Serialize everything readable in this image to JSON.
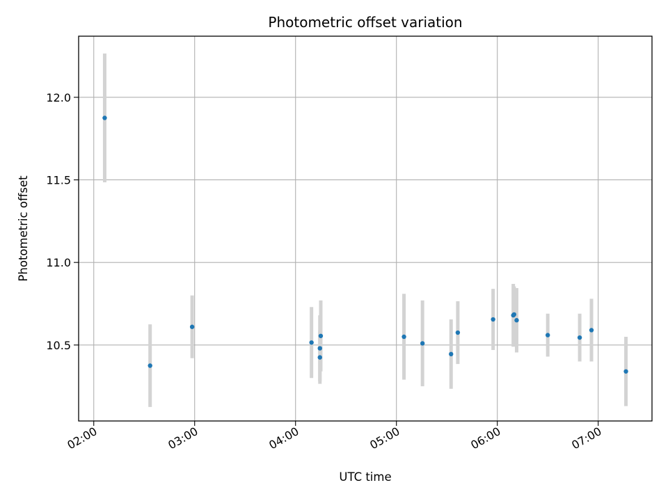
{
  "chart_data": {
    "type": "scatter",
    "title": "Photometric offset variation",
    "xlabel": "UTC time",
    "ylabel": "Photometric offset",
    "xlim": [
      "01:51",
      "07:32"
    ],
    "ylim": [
      10.04,
      12.37
    ],
    "xticks": [
      "02:00",
      "03:00",
      "04:00",
      "05:00",
      "06:00",
      "07:00"
    ],
    "yticks": [
      10.5,
      11.0,
      11.5,
      12.0
    ],
    "ytick_labels": [
      "10.5",
      "11.0",
      "11.5",
      "12.0"
    ],
    "grid": true,
    "colors": {
      "point": "#1f77b4",
      "errorbar": "#d3d3d3",
      "grid": "#b0b0b0"
    },
    "points": [
      {
        "x": "02:06.5",
        "y": 11.875,
        "err": 0.39
      },
      {
        "x": "02:33.5",
        "y": 10.375,
        "err": 0.25
      },
      {
        "x": "02:58.5",
        "y": 10.61,
        "err": 0.19
      },
      {
        "x": "04:09.5",
        "y": 10.515,
        "err": 0.215
      },
      {
        "x": "04:14.5",
        "y": 10.425,
        "err": 0.16
      },
      {
        "x": "04:14.5",
        "y": 10.48,
        "err": 0.2
      },
      {
        "x": "04:15.0",
        "y": 10.555,
        "err": 0.215
      },
      {
        "x": "05:04.5",
        "y": 10.55,
        "err": 0.26
      },
      {
        "x": "05:15.5",
        "y": 10.51,
        "err": 0.26
      },
      {
        "x": "05:32.5",
        "y": 10.445,
        "err": 0.21
      },
      {
        "x": "05:36.5",
        "y": 10.575,
        "err": 0.19
      },
      {
        "x": "05:57.5",
        "y": 10.655,
        "err": 0.185
      },
      {
        "x": "06:09.5",
        "y": 10.68,
        "err": 0.19
      },
      {
        "x": "06:10.0",
        "y": 10.685,
        "err": 0.17
      },
      {
        "x": "06:11.5",
        "y": 10.65,
        "err": 0.195
      },
      {
        "x": "06:30.0",
        "y": 10.56,
        "err": 0.13
      },
      {
        "x": "06:49.0",
        "y": 10.545,
        "err": 0.145
      },
      {
        "x": "06:56.0",
        "y": 10.59,
        "err": 0.19
      },
      {
        "x": "07:16.5",
        "y": 10.34,
        "err": 0.21
      }
    ]
  }
}
